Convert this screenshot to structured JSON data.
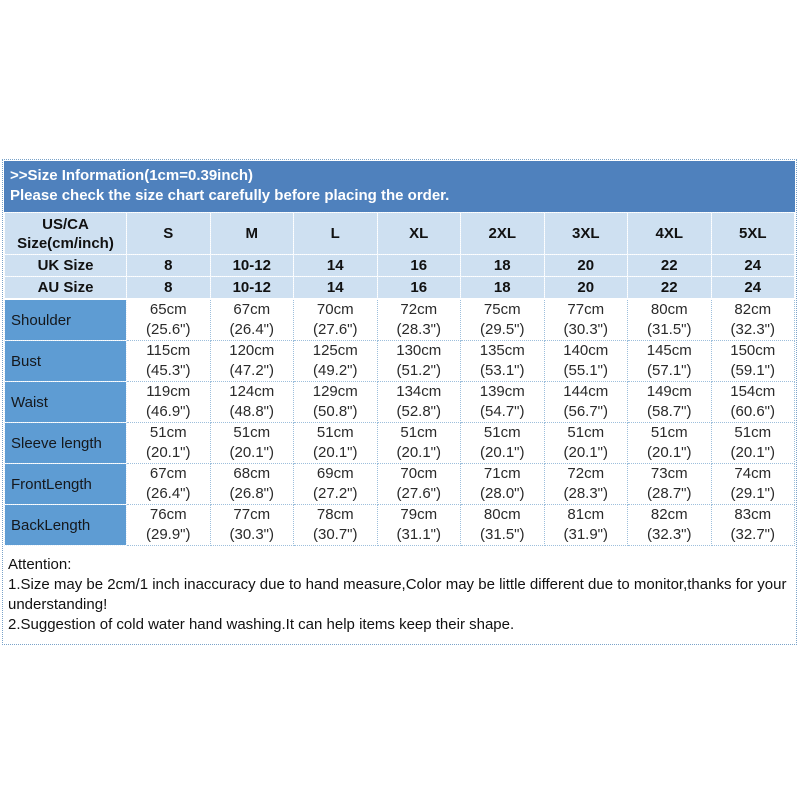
{
  "banner": {
    "line1": ">>Size Information(1cm=0.39inch)",
    "line2": "Please check the size chart carefully before placing the order."
  },
  "size_chart": {
    "corner": {
      "line1": "US/CA",
      "line2": "Size(cm/inch)"
    },
    "sizes": [
      "S",
      "M",
      "L",
      "XL",
      "2XL",
      "3XL",
      "4XL",
      "5XL"
    ],
    "uk": {
      "label": "UK Size",
      "values": [
        "8",
        "10-12",
        "14",
        "16",
        "18",
        "20",
        "22",
        "24"
      ]
    },
    "au": {
      "label": "AU Size",
      "values": [
        "8",
        "10-12",
        "14",
        "16",
        "18",
        "20",
        "22",
        "24"
      ]
    },
    "measurements": [
      {
        "label": "Shoulder",
        "cm": [
          "65cm",
          "67cm",
          "70cm",
          "72cm",
          "75cm",
          "77cm",
          "80cm",
          "82cm"
        ],
        "inch": [
          "(25.6\")",
          "(26.4\")",
          "(27.6\")",
          "(28.3\")",
          "(29.5\")",
          "(30.3\")",
          "(31.5\")",
          "(32.3\")"
        ]
      },
      {
        "label": "Bust",
        "cm": [
          "115cm",
          "120cm",
          "125cm",
          "130cm",
          "135cm",
          "140cm",
          "145cm",
          "150cm"
        ],
        "inch": [
          "(45.3\")",
          "(47.2\")",
          "(49.2\")",
          "(51.2\")",
          "(53.1\")",
          "(55.1\")",
          "(57.1\")",
          "(59.1\")"
        ]
      },
      {
        "label": "Waist",
        "cm": [
          "119cm",
          "124cm",
          "129cm",
          "134cm",
          "139cm",
          "144cm",
          "149cm",
          "154cm"
        ],
        "inch": [
          "(46.9\")",
          "(48.8\")",
          "(50.8\")",
          "(52.8\")",
          "(54.7\")",
          "(56.7\")",
          "(58.7\")",
          "(60.6\")"
        ]
      },
      {
        "label": "Sleeve length",
        "cm": [
          "51cm",
          "51cm",
          "51cm",
          "51cm",
          "51cm",
          "51cm",
          "51cm",
          "51cm"
        ],
        "inch": [
          "(20.1\")",
          "(20.1\")",
          "(20.1\")",
          "(20.1\")",
          "(20.1\")",
          "(20.1\")",
          "(20.1\")",
          "(20.1\")"
        ]
      },
      {
        "label": "FrontLength",
        "cm": [
          "67cm",
          "68cm",
          "69cm",
          "70cm",
          "71cm",
          "72cm",
          "73cm",
          "74cm"
        ],
        "inch": [
          "(26.4\")",
          "(26.8\")",
          "(27.2\")",
          "(27.6\")",
          "(28.0\")",
          "(28.3\")",
          "(28.7\")",
          "(29.1\")"
        ]
      },
      {
        "label": "BackLength",
        "cm": [
          "76cm",
          "77cm",
          "78cm",
          "79cm",
          "80cm",
          "81cm",
          "82cm",
          "83cm"
        ],
        "inch": [
          "(29.9\")",
          "(30.3\")",
          "(30.7\")",
          "(31.1\")",
          "(31.5\")",
          "(31.9\")",
          "(32.3\")",
          "(32.7\")"
        ]
      }
    ]
  },
  "attention": {
    "title": "Attention:",
    "items": [
      "1.Size may be 2cm/1 inch inaccuracy due to hand measure,Color may be little different due to monitor,thanks for your understanding!",
      "2.Suggestion of cold water hand washing.It can help items keep their shape."
    ]
  },
  "colors": {
    "banner_bg": "#4f81bd",
    "header_bg": "#cee0f1",
    "label_bg": "#5e9cd3",
    "border_dotted": "#9dbfdc"
  }
}
